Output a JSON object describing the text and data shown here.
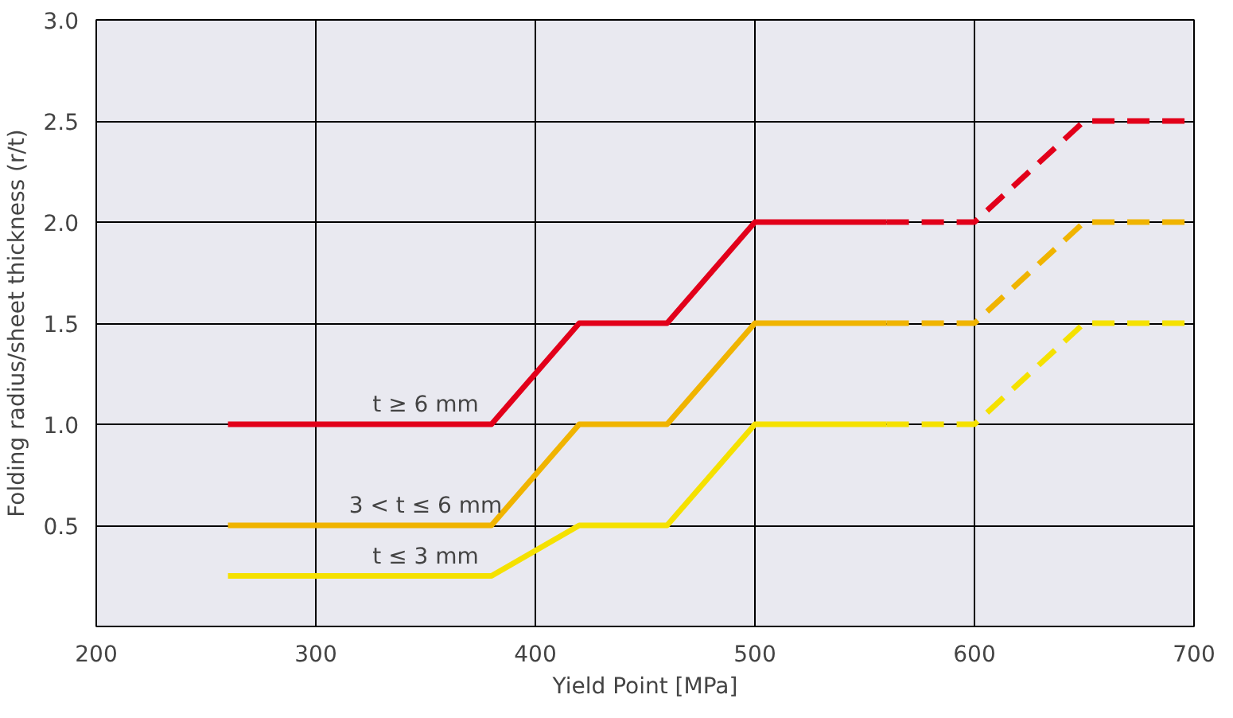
{
  "chart_data": {
    "type": "line",
    "xlabel": "Yield Point [MPa]",
    "ylabel": "Folding radius/sheet thickness (r/t)",
    "xlim": [
      200,
      700
    ],
    "ylim": [
      0,
      3.0
    ],
    "xticks": [
      200,
      300,
      400,
      500,
      600,
      700
    ],
    "yticks": [
      {
        "value": 0.5,
        "label": "0.5"
      },
      {
        "value": 1.0,
        "label": "1.0"
      },
      {
        "value": 1.5,
        "label": "1.5"
      },
      {
        "value": 2.0,
        "label": "2.0"
      },
      {
        "value": 2.5,
        "label": "2.5"
      },
      {
        "value": 3.0,
        "label": "3.0"
      }
    ],
    "grid": true,
    "marker": "none",
    "series": [
      {
        "name": "t ≥ 6 mm",
        "color": "#e2001a",
        "line_style": "solid",
        "x": [
          260,
          380,
          420,
          460,
          500,
          560
        ],
        "values": [
          1.0,
          1.0,
          1.5,
          1.5,
          2.0,
          2.0
        ]
      },
      {
        "color": "#e2001a",
        "line_style": "dashed",
        "x": [
          560,
          600,
          650,
          700
        ],
        "values": [
          2.0,
          2.0,
          2.5,
          2.5
        ]
      },
      {
        "name": "3 < t ≤ 6 mm",
        "color": "#f0b400",
        "line_style": "solid",
        "x": [
          260,
          380,
          420,
          460,
          500,
          560
        ],
        "values": [
          0.5,
          0.5,
          1.0,
          1.0,
          1.5,
          1.5
        ]
      },
      {
        "color": "#f0b400",
        "line_style": "dashed",
        "x": [
          560,
          600,
          650,
          700
        ],
        "values": [
          1.5,
          1.5,
          2.0,
          2.0
        ]
      },
      {
        "name": "t ≤ 3 mm",
        "color": "#f5e100",
        "line_style": "solid",
        "x": [
          260,
          380,
          420,
          460,
          500,
          560
        ],
        "values": [
          0.25,
          0.25,
          0.5,
          0.5,
          1.0,
          1.0
        ]
      },
      {
        "color": "#f5e100",
        "line_style": "dashed",
        "x": [
          560,
          600,
          650,
          700
        ],
        "values": [
          1.0,
          1.0,
          1.5,
          1.5
        ]
      }
    ]
  }
}
